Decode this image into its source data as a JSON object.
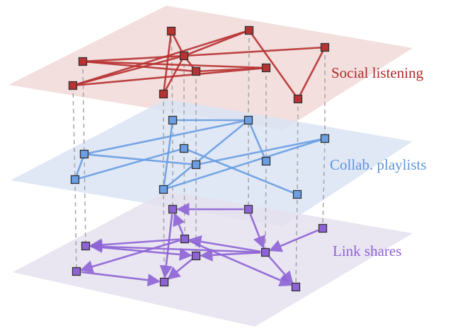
{
  "layers": [
    {
      "label": "Social listening"
    },
    {
      "label": "Collab. playlists"
    },
    {
      "label": "Link shares"
    }
  ]
}
